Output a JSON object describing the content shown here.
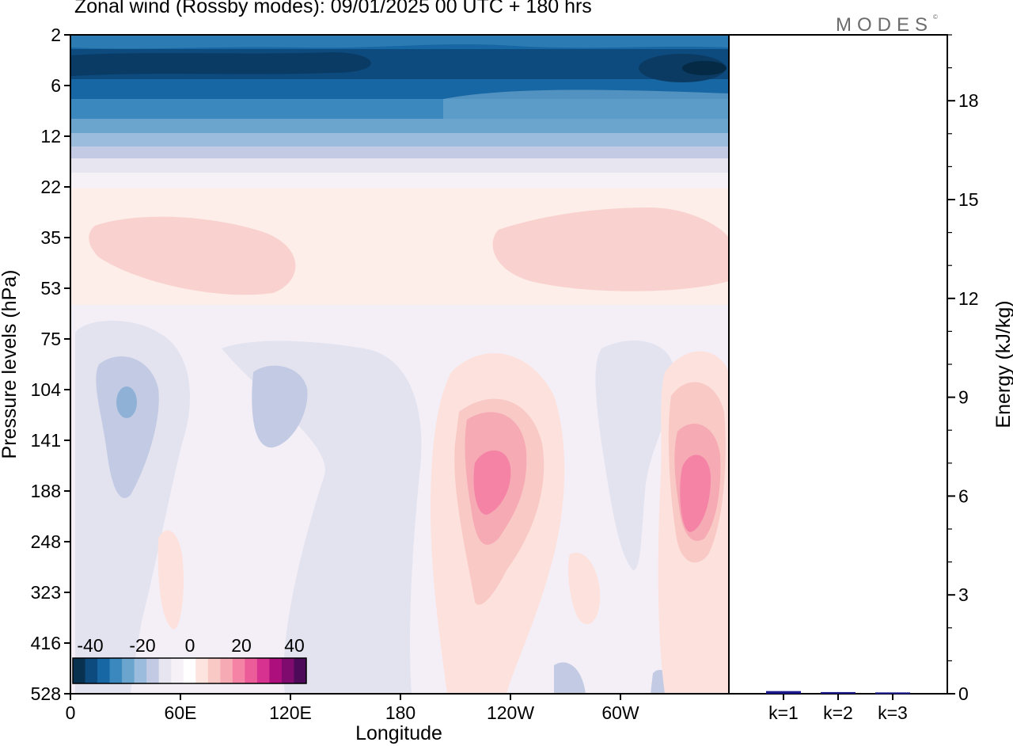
{
  "chart_data": [
    {
      "type": "heatmap",
      "title": "Zonal wind (Rossby modes):  09/01/2025  00 UTC  + 180 hrs",
      "xlabel": "Longitude",
      "ylabel": "Pressure levels (hPa)",
      "x_ticks": [
        "0",
        "60E",
        "120E",
        "180",
        "120W",
        "60W"
      ],
      "y_ticks": [
        "2",
        "6",
        "12",
        "22",
        "35",
        "53",
        "75",
        "104",
        "141",
        "188",
        "248",
        "323",
        "416",
        "528"
      ],
      "colorbar": {
        "labels": [
          "-40",
          "-20",
          "0",
          "20",
          "40"
        ],
        "colors": [
          "#08304f",
          "#0d4a7e",
          "#1767a4",
          "#3a88bd",
          "#6ba5cd",
          "#9bbcdc",
          "#c3cbe4",
          "#e6e5f0",
          "#f5f1f6",
          "#ffffff",
          "#fde4df",
          "#f9c9c6",
          "#f6aab3",
          "#f483a6",
          "#ec5c99",
          "#d83290",
          "#ad0f7d",
          "#7f0b6f",
          "#4d0a58"
        ]
      },
      "field_description_levels": {
        "2": -30,
        "6": -32,
        "12": -20,
        "22": -5,
        "35": 5,
        "53": 0,
        "75": -3,
        "104": -2,
        "141": 0,
        "188": 3,
        "248": 1,
        "323": 0,
        "416": 0,
        "528": 0
      }
    },
    {
      "type": "bar",
      "ylabel": "Energy (kJ/kg)",
      "categories": [
        "k=1",
        "k=2",
        "k=3"
      ],
      "values": [
        0.08,
        0.05,
        0.04
      ],
      "ylim": [
        0,
        20
      ],
      "y_ticks": [
        "0",
        "3",
        "6",
        "9",
        "12",
        "15",
        "18"
      ],
      "bar_color": "#1a1a8c"
    }
  ],
  "logo": {
    "text": "MODES",
    "mark": "©"
  }
}
